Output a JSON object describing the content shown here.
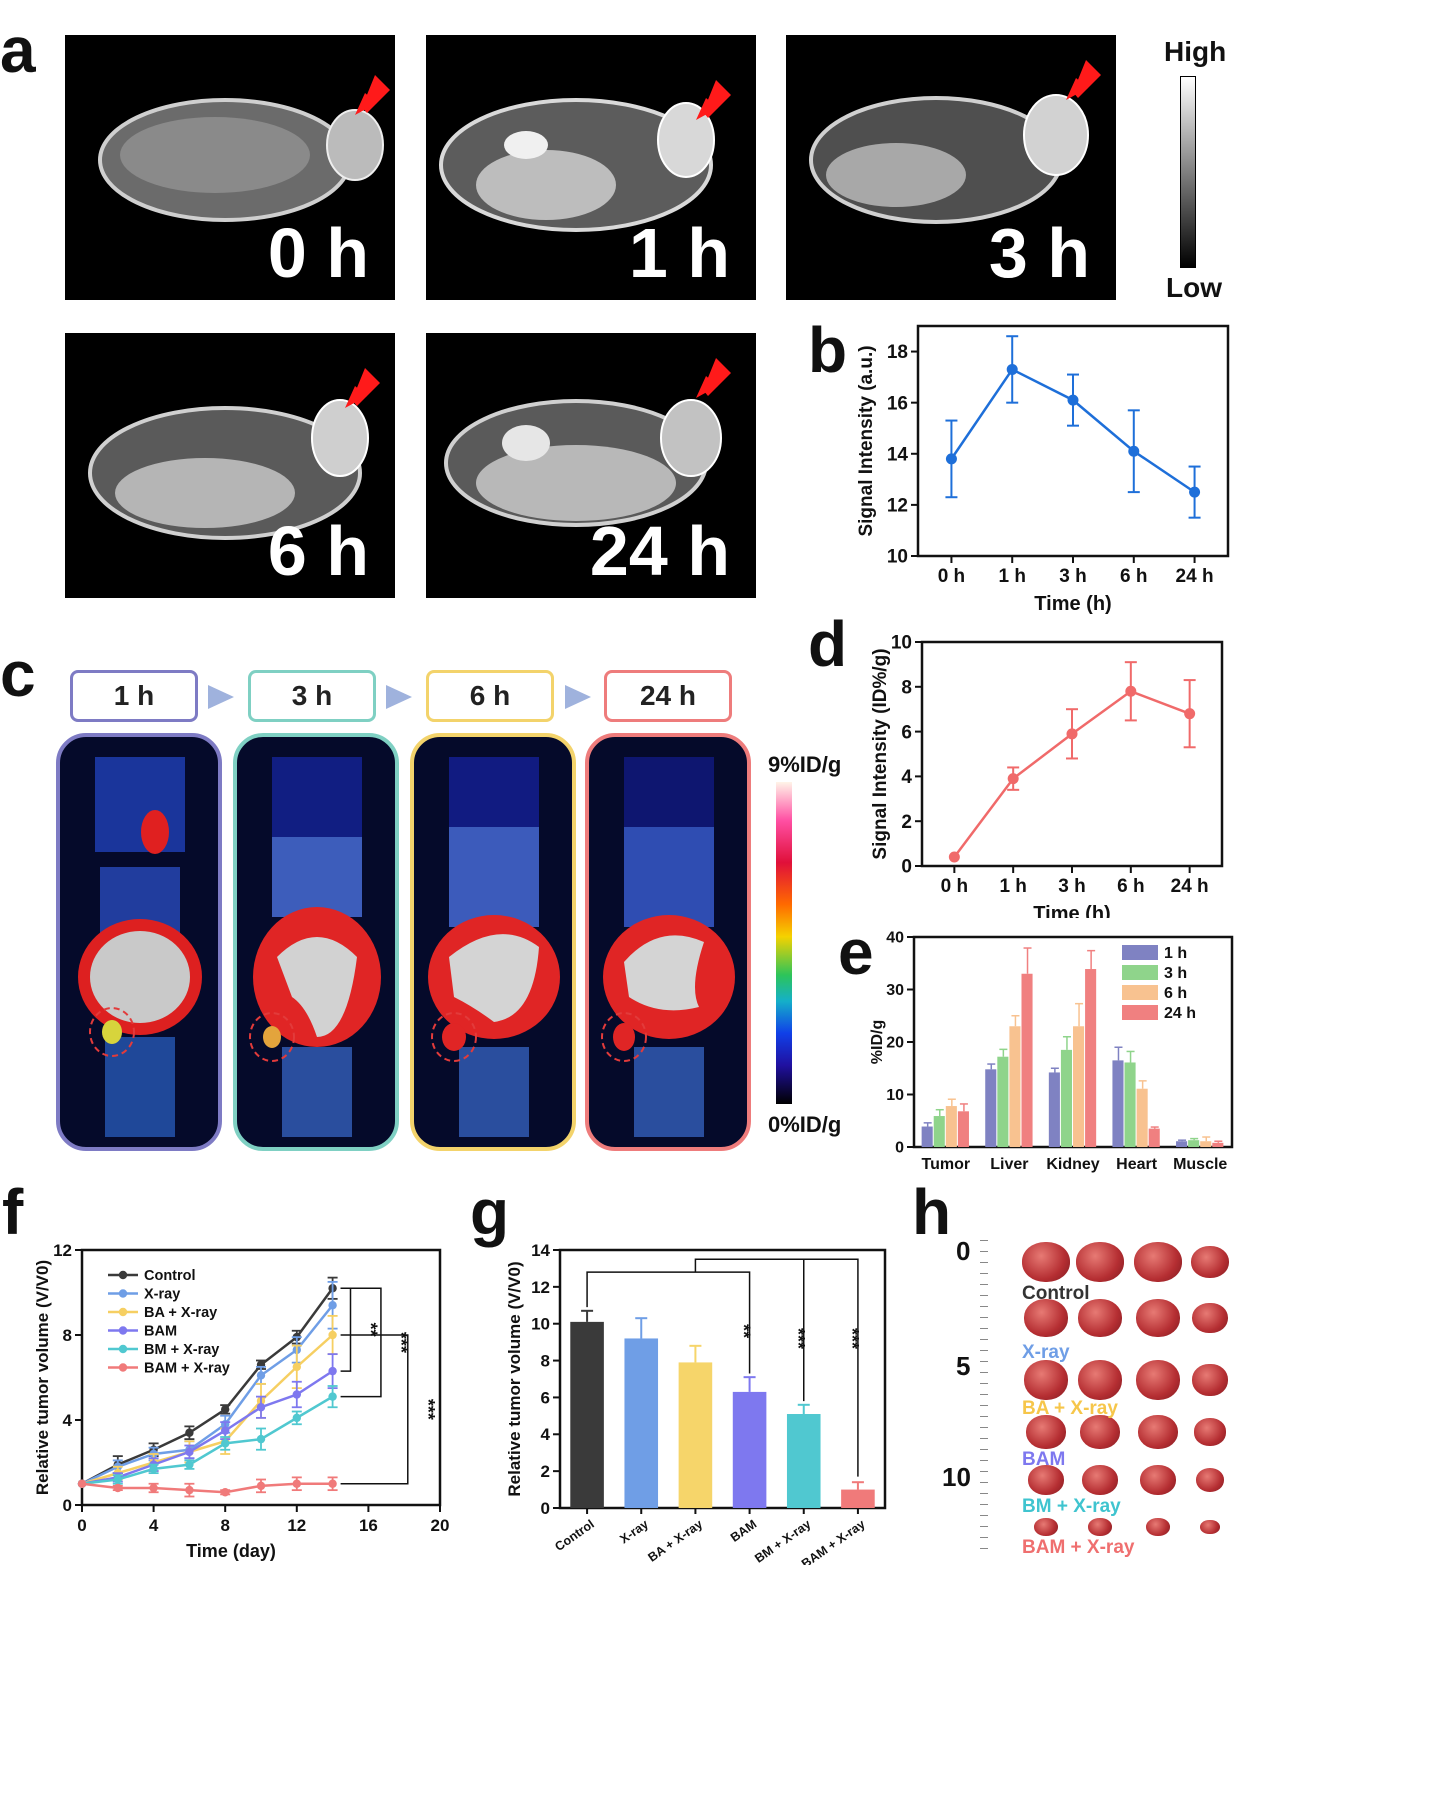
{
  "panels": {
    "a": "a",
    "b": "b",
    "c": "c",
    "d": "d",
    "e": "e",
    "f": "f",
    "g": "g",
    "h": "h"
  },
  "mri": {
    "labels": [
      "0 h",
      "1 h",
      "3 h",
      "6 h",
      "24 h"
    ],
    "colorbar": {
      "high": "High",
      "low": "Low"
    }
  },
  "pet": {
    "timepoints": [
      "1 h",
      "3 h",
      "6 h",
      "24 h"
    ],
    "colors": [
      "#7e7bc4",
      "#7fd0c3",
      "#f3d36b",
      "#ee7c7c"
    ],
    "colorbar": {
      "max": "9%ID/g",
      "min": "0%ID/g"
    }
  },
  "chart_data": [
    {
      "id": "b",
      "type": "line",
      "categories": [
        "0 h",
        "1 h",
        "3 h",
        "6 h",
        "24 h"
      ],
      "values": [
        13.8,
        17.3,
        16.1,
        14.1,
        12.5
      ],
      "errors": [
        1.5,
        1.3,
        1.0,
        1.6,
        1.0
      ],
      "xlabel": "Time (h)",
      "ylabel": "Signal Intensity (a.u.)",
      "ylim": [
        10,
        19
      ],
      "yticks": [
        10,
        12,
        14,
        16,
        18
      ],
      "color": "#1e6fd9"
    },
    {
      "id": "d",
      "type": "line",
      "categories": [
        "0 h",
        "1 h",
        "3 h",
        "6 h",
        "24 h"
      ],
      "values": [
        0.4,
        3.9,
        5.9,
        7.8,
        6.8
      ],
      "errors": [
        0,
        0.5,
        1.1,
        1.3,
        1.5
      ],
      "xlabel": "Time (h)",
      "ylabel": "Signal Intensity (ID%/g)",
      "ylim": [
        0,
        10
      ],
      "yticks": [
        0,
        2,
        4,
        6,
        8,
        10
      ],
      "color": "#f06a6a"
    },
    {
      "id": "e",
      "type": "bar",
      "categories": [
        "Tumor",
        "Liver",
        "Kidney",
        "Heart",
        "Muscle"
      ],
      "series": [
        {
          "name": "1 h",
          "values": [
            3.9,
            14.8,
            14.2,
            16.5,
            1.1
          ],
          "errors": [
            0.7,
            1.0,
            0.8,
            2.5,
            0.2
          ],
          "color": "#7f82c2"
        },
        {
          "name": "3 h",
          "values": [
            5.9,
            17.2,
            18.5,
            16.1,
            1.3
          ],
          "errors": [
            1.2,
            1.4,
            2.5,
            2.1,
            0.3
          ],
          "color": "#8fd48b"
        },
        {
          "name": "6 h",
          "values": [
            7.8,
            23.0,
            23.0,
            11.1,
            1.1
          ],
          "errors": [
            1.3,
            2.0,
            4.3,
            1.5,
            0.8
          ],
          "color": "#f8c290"
        },
        {
          "name": "24 h",
          "values": [
            6.8,
            33.0,
            33.9,
            3.5,
            0.8
          ],
          "errors": [
            1.4,
            4.9,
            3.5,
            0.3,
            0.3
          ],
          "color": "#f08080"
        }
      ],
      "ylabel": "%ID/g",
      "ylim": [
        0,
        40
      ],
      "yticks": [
        0,
        10,
        20,
        30,
        40
      ],
      "legend": "top-right"
    },
    {
      "id": "f",
      "type": "line",
      "x": [
        0,
        2,
        4,
        6,
        8,
        10,
        12,
        14
      ],
      "series": [
        {
          "name": "Control",
          "values": [
            1,
            1.9,
            2.6,
            3.4,
            4.5,
            6.6,
            7.9,
            10.2
          ],
          "errors": [
            0,
            0.4,
            0.3,
            0.3,
            0.2,
            0.2,
            0.3,
            0.5
          ],
          "color": "#3a3a3a"
        },
        {
          "name": "X-ray",
          "values": [
            1,
            1.8,
            2.4,
            2.6,
            3.8,
            6.1,
            7.3,
            9.4
          ],
          "errors": [
            0,
            0.3,
            0.3,
            0.4,
            0.4,
            0.4,
            0.6,
            1.1
          ],
          "color": "#6f9ee6"
        },
        {
          "name": "BA + X-ray",
          "values": [
            1,
            1.5,
            2.0,
            2.5,
            3.0,
            4.9,
            6.5,
            8.0
          ],
          "errors": [
            0,
            0.3,
            0.4,
            0.5,
            0.6,
            0.8,
            1.0,
            0.9
          ],
          "color": "#f6cf62"
        },
        {
          "name": "BAM",
          "values": [
            1,
            1.3,
            1.9,
            2.5,
            3.5,
            4.6,
            5.2,
            6.3
          ],
          "errors": [
            0,
            0.2,
            0.3,
            0.3,
            0.4,
            0.5,
            0.6,
            0.8
          ],
          "color": "#7e78ef"
        },
        {
          "name": "BM + X-ray",
          "values": [
            1,
            1.2,
            1.7,
            1.9,
            2.9,
            3.1,
            4.1,
            5.1
          ],
          "errors": [
            0,
            0.2,
            0.2,
            0.2,
            0.3,
            0.5,
            0.3,
            0.5
          ],
          "color": "#50c8d0"
        },
        {
          "name": "BAM + X-ray",
          "values": [
            1,
            0.8,
            0.8,
            0.7,
            0.6,
            0.9,
            1.0,
            1.0
          ],
          "errors": [
            0,
            0.1,
            0.2,
            0.3,
            0.1,
            0.3,
            0.3,
            0.3
          ],
          "color": "#f07a7a"
        }
      ],
      "xlabel": "Time (day)",
      "ylabel": "Relative tumor volume (V/V0)",
      "xlim": [
        0,
        20
      ],
      "xticks": [
        0,
        4,
        8,
        12,
        16,
        20
      ],
      "ylim": [
        0,
        12
      ],
      "yticks": [
        0,
        4,
        8,
        12
      ],
      "legend": "top-left",
      "significance": [
        "**",
        "***",
        "***"
      ]
    },
    {
      "id": "g",
      "type": "bar",
      "categories": [
        "Control",
        "X-ray",
        "BA + X-ray",
        "BAM",
        "BM + X-ray",
        "BAM + X-ray"
      ],
      "values": [
        10.1,
        9.2,
        7.9,
        6.3,
        5.1,
        1.0
      ],
      "errors": [
        0.6,
        1.1,
        0.9,
        0.8,
        0.5,
        0.4
      ],
      "colors": [
        "#3a3a3a",
        "#6f9ee6",
        "#f6d56a",
        "#7e78ef",
        "#50c8d0",
        "#f07a7a"
      ],
      "ylabel": "Relative tumor volume (V/V0)",
      "ylim": [
        0,
        14
      ],
      "yticks": [
        0,
        2,
        4,
        6,
        8,
        10,
        12,
        14
      ],
      "significance": [
        "**",
        "***",
        "***"
      ]
    }
  ],
  "photo": {
    "groups": [
      {
        "label": "Control",
        "color": "#333333"
      },
      {
        "label": "X-ray",
        "color": "#6f9ee6"
      },
      {
        "label": "BA + X-ray",
        "color": "#f6c64a"
      },
      {
        "label": "BAM",
        "color": "#7e78ef"
      },
      {
        "label": "BM + X-ray",
        "color": "#3fc4cf"
      },
      {
        "label": "BAM + X-ray",
        "color": "#ef6f6f"
      }
    ],
    "ruler": [
      "0",
      "5",
      "10"
    ]
  }
}
